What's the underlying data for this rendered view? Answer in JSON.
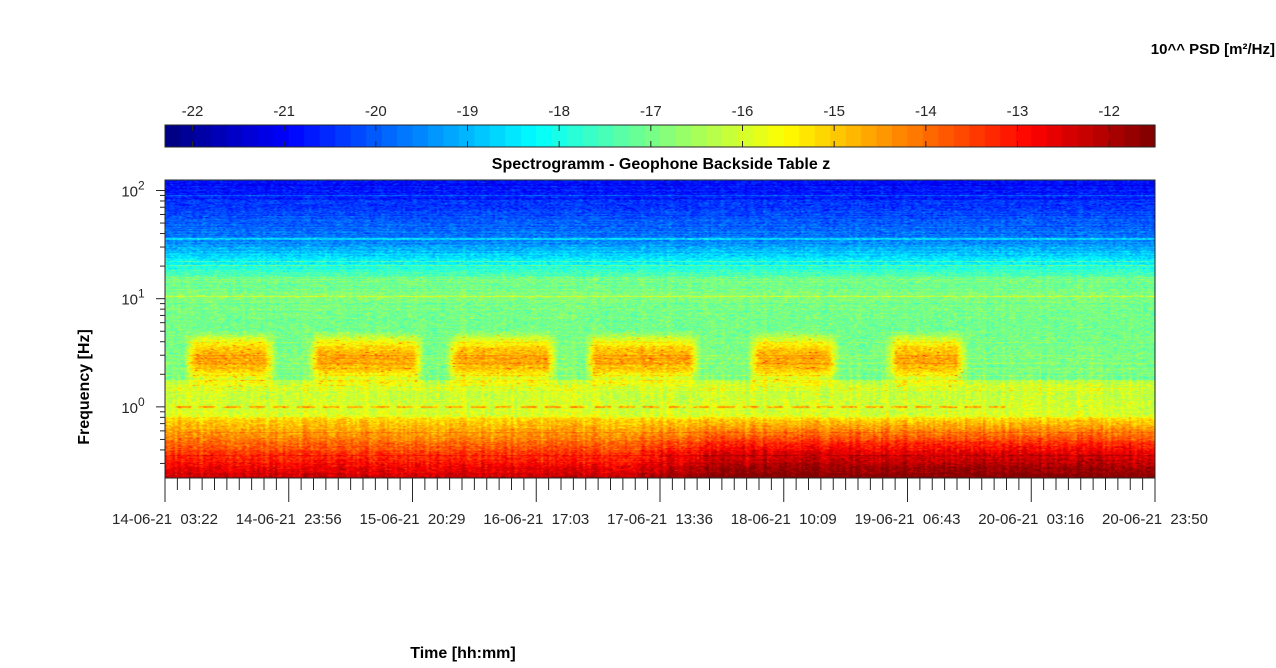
{
  "chart_data": {
    "type": "heatmap",
    "title": "Spectrogramm - Geophone Backside Table z",
    "xlabel": "Time [hh:mm]",
    "ylabel": "Frequency [Hz]",
    "colorbar": {
      "label": "10^^ PSD [m²/Hz]",
      "location": "top",
      "colormap": "jet",
      "range": [
        -22.3,
        -11.5
      ],
      "ticks": [
        "-22",
        "-21",
        "-20",
        "-19",
        "-18",
        "-17",
        "-16",
        "-15",
        "-14",
        "-13",
        "-12"
      ],
      "tick_values": [
        -22,
        -21,
        -20,
        -19,
        -18,
        -17,
        -16,
        -15,
        -14,
        -13,
        -12
      ]
    },
    "y_axis": {
      "scale": "log",
      "range_hz": [
        0.22,
        125
      ],
      "tick_labels": [
        {
          "base": "10",
          "exp": "0",
          "value": 1
        },
        {
          "base": "10",
          "exp": "1",
          "value": 10
        },
        {
          "base": "10",
          "exp": "2",
          "value": 100
        }
      ]
    },
    "x_axis": {
      "tick_labels": [
        "14-06-21  03:22",
        "14-06-21  23:56",
        "15-06-21  20:29",
        "16-06-21  17:03",
        "17-06-21  13:36",
        "18-06-21  10:09",
        "19-06-21  06:43",
        "20-06-21  03:16",
        "20-06-21  23:50"
      ],
      "minor_ticks_per_major": 10
    },
    "description_values": {
      "high_freq_level": -19.5,
      "mid_freq_level": -17.2,
      "low_freq_level": -13.0,
      "microseism_peak_hz": 0.3,
      "cultural_band_hz": [
        1.5,
        5
      ],
      "line_at_hz": 1.0,
      "activity_periods": [
        {
          "start": 0.03,
          "end": 0.1
        },
        {
          "start": 0.155,
          "end": 0.25
        },
        {
          "start": 0.295,
          "end": 0.385
        },
        {
          "start": 0.435,
          "end": 0.53
        },
        {
          "start": 0.6,
          "end": 0.67
        },
        {
          "start": 0.74,
          "end": 0.8
        }
      ]
    }
  }
}
